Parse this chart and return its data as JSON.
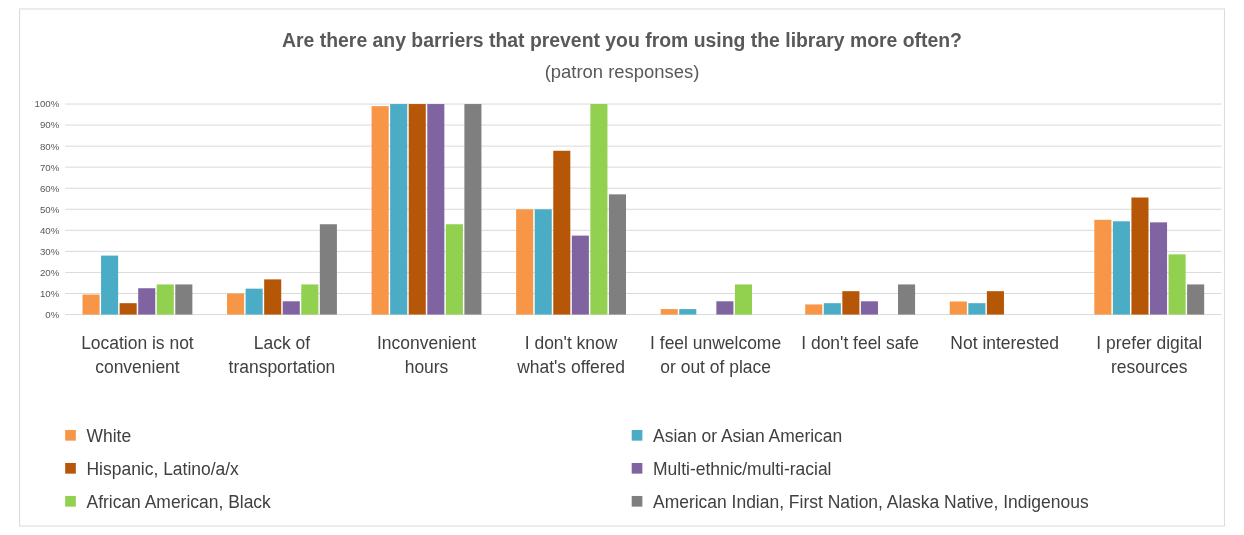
{
  "chart_data": {
    "type": "bar",
    "title": "Are there any barriers that prevent you from using the library more often?",
    "subtitle": "(patron responses)",
    "categories": [
      "Location is not convenient",
      "Lack of transportation",
      "Inconvenient hours",
      "I don't know what's offered",
      "I feel unwelcome or out of place",
      "I don't feel safe",
      "Not interested",
      "I prefer digital resources"
    ],
    "series": [
      {
        "name": "White",
        "color": "#f79646",
        "values": [
          9.5,
          10,
          99,
          50,
          2.6,
          4.8,
          6.2,
          45
        ]
      },
      {
        "name": "Asian or Asian American",
        "color": "#4bacc6",
        "values": [
          28,
          12.3,
          100,
          50,
          2.6,
          5.4,
          5.4,
          44.3
        ]
      },
      {
        "name": "Hispanic, Latino/a/x",
        "color": "#b65708",
        "values": [
          5.4,
          16.7,
          100,
          77.8,
          0,
          11.1,
          11.1,
          55.6
        ]
      },
      {
        "name": "Multi-ethnic/multi-racial",
        "color": "#8064a2",
        "values": [
          12.5,
          6.3,
          100,
          37.5,
          6.3,
          6.3,
          0,
          43.8
        ]
      },
      {
        "name": "African American, Black",
        "color": "#92d050",
        "values": [
          14.3,
          14.3,
          42.9,
          100,
          14.3,
          0,
          0,
          28.6
        ]
      },
      {
        "name": "American Indian, First Nation, Alaska Native, Indigenous",
        "color": "#7f7f7f",
        "values": [
          14.3,
          42.9,
          100,
          57.1,
          0,
          14.3,
          0,
          14.3
        ]
      }
    ],
    "ylim": [
      0,
      100
    ],
    "yticks": [
      {
        "value": 0,
        "label": "0%"
      },
      {
        "value": 10,
        "label": "10%"
      },
      {
        "value": 20,
        "label": "20%"
      },
      {
        "value": 30,
        "label": "30%"
      },
      {
        "value": 40,
        "label": "40%"
      },
      {
        "value": 50,
        "label": "50%"
      },
      {
        "value": 60,
        "label": "60%"
      },
      {
        "value": 70,
        "label": "70%"
      },
      {
        "value": 80,
        "label": "80%"
      },
      {
        "value": 90,
        "label": "90%"
      },
      {
        "value": 100,
        "label": "100%"
      }
    ],
    "grid": "y",
    "legend": "bottom"
  }
}
